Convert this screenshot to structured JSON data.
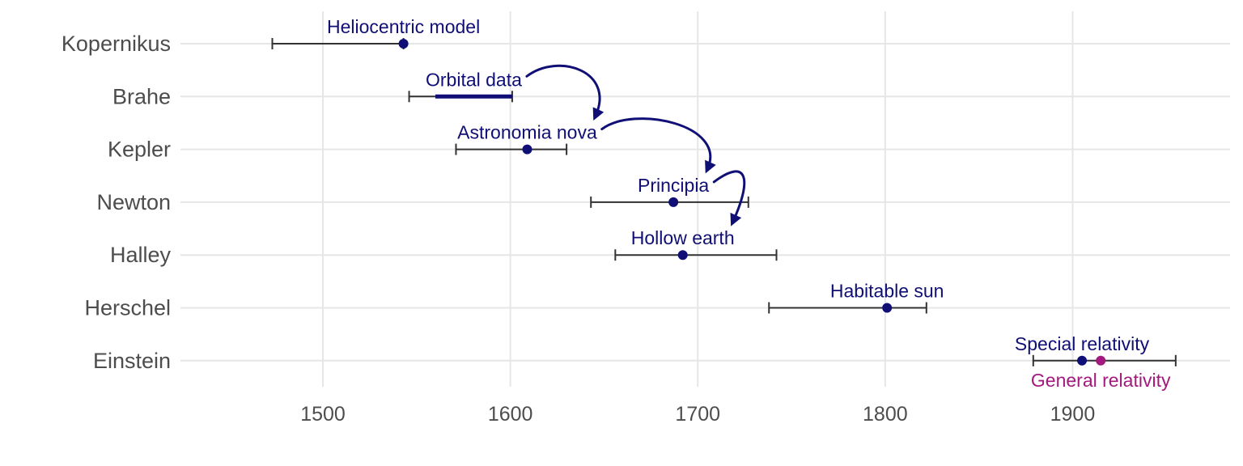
{
  "chart_data": {
    "type": "range-dot",
    "xlim": [
      1424,
      1984
    ],
    "x_ticks": [
      1500,
      1600,
      1700,
      1800,
      1900
    ],
    "grid": true,
    "colors": {
      "primary": "#0f0f75",
      "secondary": "#a3197d",
      "range": "#333333",
      "grid": "#e6e6e6",
      "tick_text": "#4d4d4d"
    },
    "people": [
      {
        "name": "Kopernikus",
        "born": 1473,
        "died": 1543
      },
      {
        "name": "Brahe",
        "born": 1546,
        "died": 1601
      },
      {
        "name": "Kepler",
        "born": 1571,
        "died": 1630
      },
      {
        "name": "Newton",
        "born": 1643,
        "died": 1727
      },
      {
        "name": "Halley",
        "born": 1656,
        "died": 1742
      },
      {
        "name": "Herschel",
        "born": 1738,
        "died": 1822
      },
      {
        "name": "Einstein",
        "born": 1879,
        "died": 1955
      }
    ],
    "events": [
      {
        "person": "Kopernikus",
        "label": "Heliocentric model",
        "year": 1543,
        "color": "primary",
        "label_pos": "above"
      },
      {
        "person": "Brahe",
        "label": "Orbital data",
        "year_start": 1560,
        "year_end": 1601,
        "color": "primary",
        "label_pos": "above"
      },
      {
        "person": "Kepler",
        "label": "Astronomia nova",
        "year": 1609,
        "color": "primary",
        "label_pos": "above"
      },
      {
        "person": "Newton",
        "label": "Principia",
        "year": 1687,
        "color": "primary",
        "label_pos": "above"
      },
      {
        "person": "Halley",
        "label": "Hollow earth",
        "year": 1692,
        "color": "primary",
        "label_pos": "above"
      },
      {
        "person": "Herschel",
        "label": "Habitable sun",
        "year": 1801,
        "color": "primary",
        "label_pos": "above"
      },
      {
        "person": "Einstein",
        "label": "Special relativity",
        "year": 1905,
        "color": "primary",
        "label_pos": "above"
      },
      {
        "person": "Einstein",
        "label": "General relativity",
        "year": 1915,
        "color": "secondary",
        "label_pos": "below"
      }
    ],
    "arrows": [
      {
        "from": "Orbital data",
        "to": "Astronomia nova"
      },
      {
        "from": "Astronomia nova",
        "to": "Principia"
      },
      {
        "from": "Principia",
        "to": "Hollow earth"
      }
    ]
  }
}
